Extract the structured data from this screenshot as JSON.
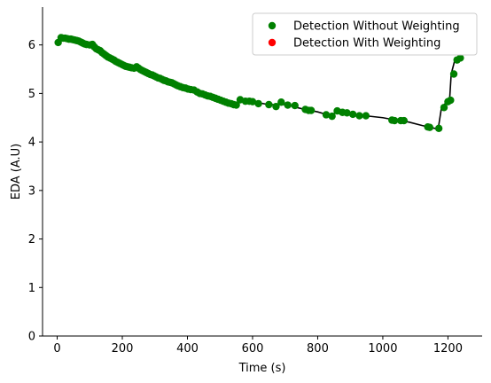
{
  "chart_data": {
    "type": "scatter",
    "xlabel": "Time (s)",
    "ylabel": "EDA (A.U)",
    "xlim": [
      -45,
      1305
    ],
    "ylim": [
      0,
      6.78
    ],
    "xticks": [
      0,
      200,
      400,
      600,
      800,
      1000,
      1200
    ],
    "yticks": [
      0,
      1,
      2,
      3,
      4,
      5,
      6
    ],
    "grid": false,
    "legend_position": "top-right",
    "line": {
      "color": "#000000",
      "x": [
        0,
        12,
        30,
        60,
        90,
        110,
        130,
        160,
        200,
        240,
        280,
        320,
        360,
        400,
        440,
        480,
        520,
        545,
        560,
        580,
        600,
        650,
        700,
        760,
        800,
        840,
        860,
        880,
        920,
        960,
        1000,
        1040,
        1080,
        1120,
        1160,
        1170,
        1180,
        1195,
        1205,
        1210,
        1220,
        1230,
        1245
      ],
      "y": [
        6.05,
        6.15,
        6.13,
        6.1,
        6.02,
        5.97,
        5.88,
        5.74,
        5.58,
        5.5,
        5.38,
        5.27,
        5.17,
        5.08,
        4.98,
        4.88,
        4.79,
        4.77,
        4.86,
        4.84,
        4.83,
        4.77,
        4.77,
        4.67,
        4.62,
        4.54,
        4.63,
        4.6,
        4.56,
        4.53,
        4.5,
        4.45,
        4.41,
        4.34,
        4.28,
        4.27,
        4.7,
        4.82,
        4.86,
        5.4,
        5.66,
        5.72,
        5.76
      ]
    },
    "series": [
      {
        "name": "Detection Without Weighting",
        "color": "#008000",
        "points": [
          [
            3,
            6.05
          ],
          [
            12,
            6.15
          ],
          [
            18,
            6.14
          ],
          [
            24,
            6.14
          ],
          [
            30,
            6.13
          ],
          [
            36,
            6.12
          ],
          [
            42,
            6.12
          ],
          [
            48,
            6.11
          ],
          [
            54,
            6.1
          ],
          [
            60,
            6.09
          ],
          [
            66,
            6.08
          ],
          [
            72,
            6.06
          ],
          [
            78,
            6.04
          ],
          [
            84,
            6.02
          ],
          [
            90,
            6.01
          ],
          [
            100,
            6.0
          ],
          [
            108,
            6.01
          ],
          [
            114,
            5.96
          ],
          [
            120,
            5.92
          ],
          [
            126,
            5.9
          ],
          [
            132,
            5.88
          ],
          [
            138,
            5.84
          ],
          [
            144,
            5.81
          ],
          [
            150,
            5.78
          ],
          [
            156,
            5.75
          ],
          [
            162,
            5.73
          ],
          [
            168,
            5.71
          ],
          [
            174,
            5.69
          ],
          [
            180,
            5.66
          ],
          [
            186,
            5.64
          ],
          [
            192,
            5.62
          ],
          [
            198,
            5.6
          ],
          [
            204,
            5.58
          ],
          [
            210,
            5.56
          ],
          [
            216,
            5.55
          ],
          [
            222,
            5.54
          ],
          [
            228,
            5.53
          ],
          [
            236,
            5.52
          ],
          [
            244,
            5.55
          ],
          [
            250,
            5.52
          ],
          [
            256,
            5.49
          ],
          [
            262,
            5.47
          ],
          [
            268,
            5.45
          ],
          [
            274,
            5.43
          ],
          [
            280,
            5.41
          ],
          [
            286,
            5.39
          ],
          [
            292,
            5.38
          ],
          [
            298,
            5.36
          ],
          [
            304,
            5.34
          ],
          [
            310,
            5.32
          ],
          [
            316,
            5.31
          ],
          [
            322,
            5.29
          ],
          [
            328,
            5.27
          ],
          [
            334,
            5.26
          ],
          [
            340,
            5.24
          ],
          [
            346,
            5.23
          ],
          [
            352,
            5.22
          ],
          [
            358,
            5.2
          ],
          [
            364,
            5.18
          ],
          [
            370,
            5.16
          ],
          [
            378,
            5.14
          ],
          [
            386,
            5.12
          ],
          [
            394,
            5.11
          ],
          [
            402,
            5.09
          ],
          [
            410,
            5.08
          ],
          [
            420,
            5.07
          ],
          [
            430,
            5.03
          ],
          [
            438,
            5.0
          ],
          [
            446,
            4.99
          ],
          [
            454,
            4.97
          ],
          [
            462,
            4.95
          ],
          [
            470,
            4.94
          ],
          [
            478,
            4.92
          ],
          [
            486,
            4.9
          ],
          [
            494,
            4.88
          ],
          [
            502,
            4.86
          ],
          [
            510,
            4.84
          ],
          [
            518,
            4.82
          ],
          [
            526,
            4.8
          ],
          [
            534,
            4.79
          ],
          [
            542,
            4.77
          ],
          [
            550,
            4.76
          ],
          [
            562,
            4.87
          ],
          [
            578,
            4.84
          ],
          [
            590,
            4.84
          ],
          [
            600,
            4.83
          ],
          [
            618,
            4.79
          ],
          [
            650,
            4.77
          ],
          [
            672,
            4.73
          ],
          [
            688,
            4.82
          ],
          [
            708,
            4.76
          ],
          [
            730,
            4.75
          ],
          [
            762,
            4.67
          ],
          [
            772,
            4.65
          ],
          [
            780,
            4.65
          ],
          [
            826,
            4.56
          ],
          [
            844,
            4.53
          ],
          [
            860,
            4.64
          ],
          [
            876,
            4.61
          ],
          [
            890,
            4.6
          ],
          [
            908,
            4.57
          ],
          [
            928,
            4.54
          ],
          [
            948,
            4.54
          ],
          [
            1028,
            4.45
          ],
          [
            1036,
            4.44
          ],
          [
            1055,
            4.44
          ],
          [
            1065,
            4.44
          ],
          [
            1138,
            4.31
          ],
          [
            1144,
            4.3
          ],
          [
            1172,
            4.28
          ],
          [
            1188,
            4.71
          ],
          [
            1200,
            4.83
          ],
          [
            1208,
            4.86
          ],
          [
            1218,
            5.4
          ],
          [
            1228,
            5.69
          ],
          [
            1238,
            5.73
          ]
        ]
      },
      {
        "name": "Detection With Weighting",
        "color": "#ff0000",
        "points": []
      }
    ]
  }
}
